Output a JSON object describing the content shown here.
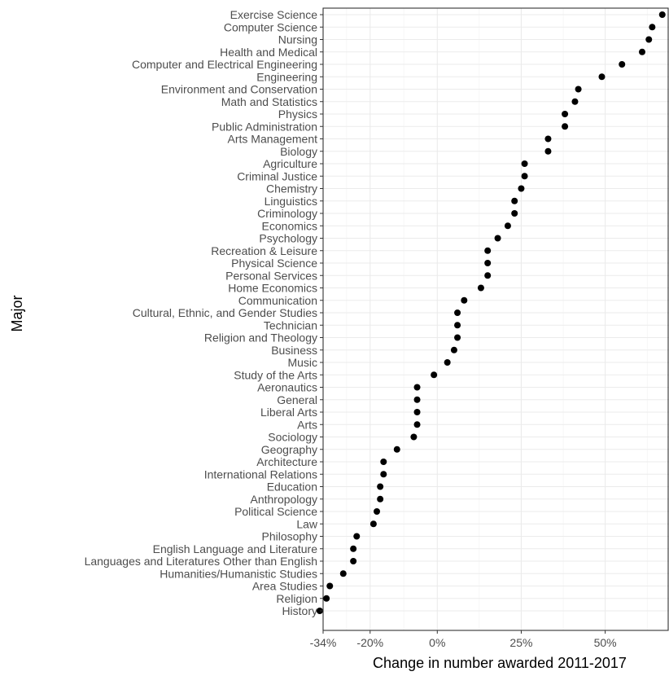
{
  "chart_data": {
    "type": "scatter",
    "orientation": "horizontal",
    "xlabel": "Change in number awarded 2011-2017",
    "ylabel": "Major",
    "xlim": [
      -34,
      69
    ],
    "x_ticks": [
      {
        "value": -34,
        "label": "-34%"
      },
      {
        "value": -20,
        "label": "-20%"
      },
      {
        "value": 0,
        "label": "0%"
      },
      {
        "value": 25,
        "label": "25%"
      },
      {
        "value": 50,
        "label": "50%"
      }
    ],
    "grid": true,
    "categories": [
      "Exercise Science",
      "Computer Science",
      "Nursing",
      "Health and Medical",
      "Computer and Electrical Engineering",
      "Engineering",
      "Environment and Conservation",
      "Math and Statistics",
      "Physics",
      "Public Administration",
      "Arts Management",
      "Biology",
      "Agriculture",
      "Criminal Justice",
      "Chemistry",
      "Linguistics",
      "Criminology",
      "Economics",
      "Psychology",
      "Recreation & Leisure",
      "Physical Science",
      "Personal Services",
      "Home Economics",
      "Communication",
      "Cultural, Ethnic, and Gender Studies",
      "Technician",
      "Religion and Theology",
      "Business",
      "Music",
      "Study of the Arts",
      "Aeronautics",
      "General",
      "Liberal Arts",
      "Arts",
      "Sociology",
      "Geography",
      "Architecture",
      "International Relations",
      "Education",
      "Anthropology",
      "Political Science",
      "Law",
      "Philosophy",
      "English Language and Literature",
      "Languages and Literatures Other than English",
      "Humanities/Humanistic Studies",
      "Area Studies",
      "Religion",
      "History"
    ],
    "values": [
      67,
      64,
      63,
      61,
      55,
      49,
      42,
      41,
      38,
      38,
      33,
      33,
      26,
      26,
      25,
      23,
      23,
      21,
      18,
      15,
      15,
      15,
      13,
      8,
      6,
      6,
      6,
      5,
      3,
      -1,
      -6,
      -6,
      -6,
      -6,
      -7,
      -12,
      -16,
      -16,
      -17,
      -17,
      -18,
      -19,
      -24,
      -25,
      -25,
      -28,
      -32,
      -33,
      -35
    ]
  }
}
